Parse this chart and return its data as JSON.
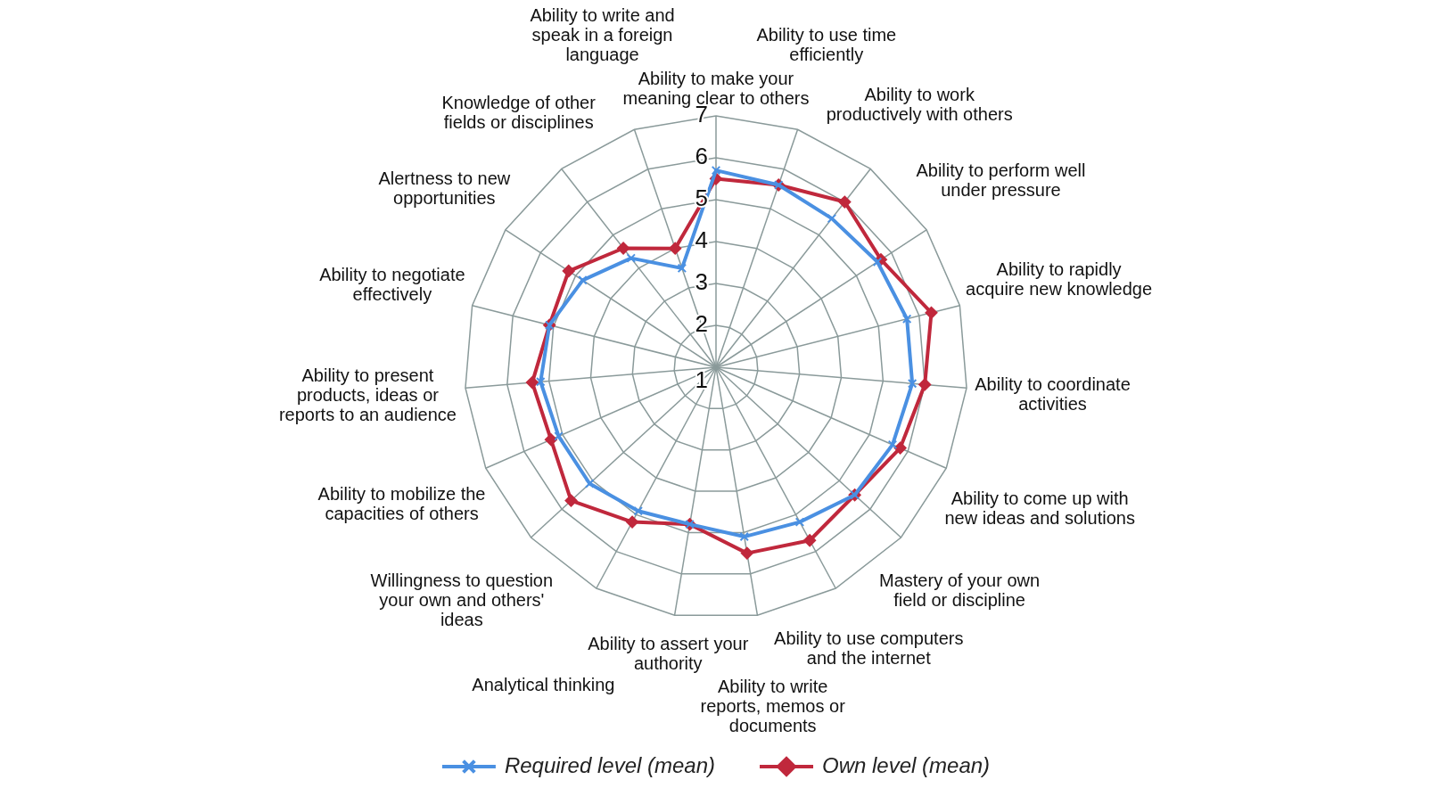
{
  "chart_data": {
    "type": "radar",
    "categories": [
      "Ability to make your meaning clear to others",
      "Ability to use time efficiently",
      "Ability to work productively with others",
      "Ability to perform well under pressure",
      "Ability to rapidly acquire new knowledge",
      "Ability to coordinate activities",
      "Ability to come up with new ideas and solutions",
      "Mastery of your own field or discipline",
      "Ability to use computers and the internet",
      "Ability to write reports, memos or documents",
      "Ability to assert your authority",
      "Analytical thinking",
      "Willingness to question your own and others' ideas",
      "Ability to mobilize the capacities of others",
      "Ability to present products, ideas or reports to an audience",
      "Ability to negotiate effectively",
      "Alertness to new opportunities",
      "Knowledge of other fields or disciplines",
      "Ability to write and speak in a foreign language"
    ],
    "series": [
      {
        "name": "Required level (mean)",
        "color": "#4a90e2",
        "marker": "cross",
        "values": [
          5.7,
          5.6,
          5.5,
          5.6,
          5.7,
          5.7,
          5.6,
          5.5,
          5.2,
          5.1,
          4.8,
          4.9,
          5.1,
          5.1,
          5.2,
          5.1,
          4.8,
          4.3,
          3.5
        ]
      },
      {
        "name": "Own level (mean)",
        "color": "#c0283c",
        "marker": "diamond",
        "values": [
          5.5,
          5.6,
          6.0,
          5.7,
          6.3,
          6.0,
          5.8,
          5.5,
          5.7,
          5.5,
          4.8,
          5.2,
          5.7,
          5.3,
          5.4,
          5.1,
          5.2,
          4.6,
          4.0
        ]
      }
    ],
    "ylim": [
      1,
      7
    ],
    "yticks": [
      1,
      2,
      3,
      4,
      5,
      6,
      7
    ],
    "grid": true,
    "legend": "bottom",
    "line_style": "solid"
  }
}
